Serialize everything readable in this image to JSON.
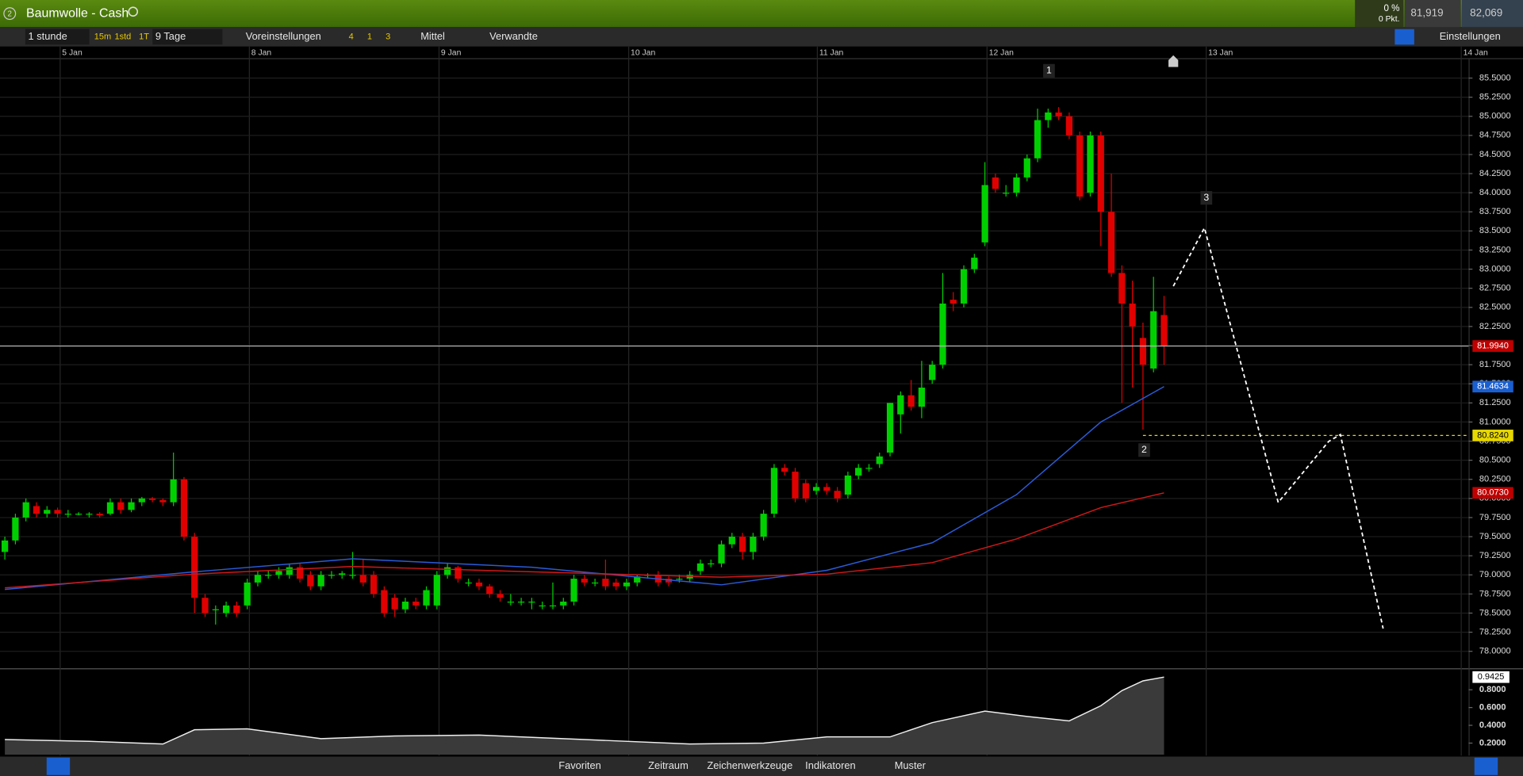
{
  "header": {
    "title": "Baumwolle - Cash",
    "change_pct": "0 %",
    "change_pts": "0 Pkt.",
    "sell": "81,919",
    "buy": "82,069",
    "badge": "2"
  },
  "toolbar": {
    "interval": "1 stunde",
    "quick": [
      "15m",
      "1std",
      "1T"
    ],
    "range": "9 Tage",
    "presets": "Voreinstellungen",
    "counts": [
      "4",
      "1",
      "3"
    ],
    "style": "Mittel",
    "related": "Verwandte",
    "settings": "Einstellungen"
  },
  "footer": {
    "tabs": [
      "Favoriten",
      "Zeitraum",
      "Zeichenwerkzeuge",
      "Indikatoren",
      "Muster"
    ]
  },
  "chart_data": {
    "type": "candlestick",
    "xlim": [
      0,
      138.9
    ],
    "xticks": [
      {
        "value": 5.25,
        "label": "5 Jan"
      },
      {
        "value": 23.2,
        "label": "8 Jan"
      },
      {
        "value": 41.2,
        "label": "9 Jan"
      },
      {
        "value": 59.2,
        "label": "10 Jan"
      },
      {
        "value": 77.1,
        "label": "11 Jan"
      },
      {
        "value": 93.2,
        "label": "12 Jan"
      },
      {
        "value": 114,
        "label": "13 Jan"
      },
      {
        "value": 138.2,
        "label": "14 Jan"
      }
    ],
    "ylim": [
      77.79,
      85.76
    ],
    "yticks": [
      {
        "value": 78,
        "label": "78.0000"
      },
      {
        "value": 78.25,
        "label": "78.2500"
      },
      {
        "value": 78.5,
        "label": "78.5000"
      },
      {
        "value": 78.75,
        "label": "78.7500"
      },
      {
        "value": 79,
        "label": "79.0000"
      },
      {
        "value": 79.25,
        "label": "79.2500"
      },
      {
        "value": 79.5,
        "label": "79.5000"
      },
      {
        "value": 79.75,
        "label": "79.7500"
      },
      {
        "value": 80,
        "label": "80.0000"
      },
      {
        "value": 80.25,
        "label": "80.2500"
      },
      {
        "value": 80.5,
        "label": "80.5000"
      },
      {
        "value": 80.75,
        "label": "80.7500"
      },
      {
        "value": 81,
        "label": "81.0000"
      },
      {
        "value": 81.25,
        "label": "81.2500"
      },
      {
        "value": 81.5,
        "label": "81.5000"
      },
      {
        "value": 81.75,
        "label": "81.7500"
      },
      {
        "value": 82,
        "label": "82.0000"
      },
      {
        "value": 82.25,
        "label": "82.2500"
      },
      {
        "value": 82.5,
        "label": "82.5000"
      },
      {
        "value": 82.75,
        "label": "82.7500"
      },
      {
        "value": 83,
        "label": "83.0000"
      },
      {
        "value": 83.25,
        "label": "83.2500"
      },
      {
        "value": 83.5,
        "label": "83.5000"
      },
      {
        "value": 83.75,
        "label": "83.7500"
      },
      {
        "value": 84,
        "label": "84.0000"
      },
      {
        "value": 84.25,
        "label": "84.2500"
      },
      {
        "value": 84.5,
        "label": "84.5000"
      },
      {
        "value": 84.75,
        "label": "84.7500"
      },
      {
        "value": 85,
        "label": "85.0000"
      },
      {
        "value": 85.25,
        "label": "85.2500"
      },
      {
        "value": 85.5,
        "label": "85.5000"
      }
    ],
    "up_color": "#00d000",
    "down_color": "#e00000",
    "ohlc": [
      [
        79.3,
        79.5,
        79.2,
        79.45
      ],
      [
        79.45,
        79.8,
        79.4,
        79.75
      ],
      [
        79.75,
        80.0,
        79.7,
        79.95
      ],
      [
        79.9,
        79.95,
        79.75,
        79.8
      ],
      [
        79.8,
        79.9,
        79.75,
        79.85
      ],
      [
        79.85,
        79.88,
        79.75,
        79.8
      ],
      [
        79.8,
        79.85,
        79.75,
        79.8
      ],
      [
        79.8,
        79.82,
        79.78,
        79.8
      ],
      [
        79.8,
        79.82,
        79.75,
        79.8
      ],
      [
        79.8,
        79.82,
        79.75,
        79.78
      ],
      [
        79.8,
        80.0,
        79.78,
        79.95
      ],
      [
        79.95,
        80.0,
        79.8,
        79.85
      ],
      [
        79.85,
        80.0,
        79.82,
        79.95
      ],
      [
        79.95,
        80.02,
        79.9,
        80.0
      ],
      [
        80.0,
        80.02,
        79.95,
        79.98
      ],
      [
        79.98,
        80.0,
        79.9,
        79.95
      ],
      [
        79.95,
        80.6,
        79.9,
        80.25
      ],
      [
        80.25,
        80.28,
        79.45,
        79.5
      ],
      [
        79.5,
        79.55,
        78.5,
        78.7
      ],
      [
        78.7,
        78.75,
        78.45,
        78.5
      ],
      [
        78.55,
        78.6,
        78.35,
        78.55
      ],
      [
        78.5,
        78.65,
        78.45,
        78.6
      ],
      [
        78.6,
        78.65,
        78.45,
        78.5
      ],
      [
        78.6,
        78.95,
        78.55,
        78.9
      ],
      [
        78.9,
        79.05,
        78.85,
        79.0
      ],
      [
        79.0,
        79.05,
        78.95,
        79.0
      ],
      [
        79.0,
        79.1,
        78.95,
        79.05
      ],
      [
        79.0,
        79.15,
        78.95,
        79.1
      ],
      [
        79.1,
        79.15,
        78.9,
        78.95
      ],
      [
        79.0,
        79.05,
        78.8,
        78.85
      ],
      [
        78.85,
        79.05,
        78.8,
        79.0
      ],
      [
        79.0,
        79.05,
        78.95,
        79.0
      ],
      [
        79.0,
        79.05,
        78.95,
        79.02
      ],
      [
        79.0,
        79.3,
        78.95,
        79.0
      ],
      [
        79.0,
        79.2,
        78.85,
        78.9
      ],
      [
        79.0,
        79.05,
        78.7,
        78.75
      ],
      [
        78.8,
        78.85,
        78.45,
        78.5
      ],
      [
        78.7,
        78.75,
        78.45,
        78.55
      ],
      [
        78.55,
        78.7,
        78.5,
        78.65
      ],
      [
        78.65,
        78.7,
        78.55,
        78.6
      ],
      [
        78.6,
        78.85,
        78.55,
        78.8
      ],
      [
        78.6,
        79.05,
        78.55,
        79.0
      ],
      [
        79.0,
        79.15,
        78.95,
        79.1
      ],
      [
        79.1,
        79.12,
        78.9,
        78.95
      ],
      [
        78.9,
        78.95,
        78.85,
        78.9
      ],
      [
        78.9,
        78.95,
        78.8,
        78.85
      ],
      [
        78.85,
        78.88,
        78.7,
        78.75
      ],
      [
        78.75,
        78.8,
        78.65,
        78.7
      ],
      [
        78.65,
        78.75,
        78.6,
        78.65
      ],
      [
        78.65,
        78.7,
        78.6,
        78.65
      ],
      [
        78.65,
        78.7,
        78.55,
        78.65
      ],
      [
        78.6,
        78.65,
        78.55,
        78.6
      ],
      [
        78.6,
        78.9,
        78.55,
        78.6
      ],
      [
        78.6,
        78.7,
        78.55,
        78.65
      ],
      [
        78.65,
        79.0,
        78.6,
        78.95
      ],
      [
        78.95,
        79.0,
        78.85,
        78.9
      ],
      [
        78.9,
        78.95,
        78.85,
        78.9
      ],
      [
        78.95,
        79.2,
        78.8,
        78.85
      ],
      [
        78.9,
        78.95,
        78.8,
        78.85
      ],
      [
        78.85,
        78.95,
        78.8,
        78.9
      ],
      [
        78.9,
        79.0,
        78.85,
        78.98
      ],
      [
        79.0,
        79.02,
        78.95,
        79.0
      ],
      [
        79.0,
        79.05,
        78.85,
        78.9
      ],
      [
        78.95,
        78.98,
        78.85,
        78.9
      ],
      [
        78.95,
        79.0,
        78.9,
        78.95
      ],
      [
        78.95,
        79.05,
        78.9,
        79.0
      ],
      [
        79.05,
        79.2,
        79.0,
        79.15
      ],
      [
        79.15,
        79.2,
        79.1,
        79.15
      ],
      [
        79.15,
        79.45,
        79.1,
        79.4
      ],
      [
        79.4,
        79.55,
        79.35,
        79.5
      ],
      [
        79.5,
        79.55,
        79.2,
        79.3
      ],
      [
        79.3,
        79.55,
        79.2,
        79.5
      ],
      [
        79.5,
        79.85,
        79.45,
        79.8
      ],
      [
        79.8,
        80.45,
        79.75,
        80.4
      ],
      [
        80.4,
        80.45,
        80.3,
        80.35
      ],
      [
        80.35,
        80.4,
        79.95,
        80.0
      ],
      [
        80.2,
        80.25,
        79.95,
        80.0
      ],
      [
        80.1,
        80.2,
        80.05,
        80.15
      ],
      [
        80.15,
        80.2,
        80.05,
        80.1
      ],
      [
        80.1,
        80.15,
        79.95,
        80.0
      ],
      [
        80.05,
        80.35,
        80.0,
        80.3
      ],
      [
        80.3,
        80.45,
        80.25,
        80.4
      ],
      [
        80.4,
        80.45,
        80.35,
        80.4
      ],
      [
        80.45,
        80.6,
        80.4,
        80.55
      ],
      [
        80.6,
        81.25,
        80.55,
        81.25
      ],
      [
        81.1,
        81.4,
        80.85,
        81.35
      ],
      [
        81.35,
        81.55,
        81.15,
        81.2
      ],
      [
        81.2,
        81.8,
        81.05,
        81.45
      ],
      [
        81.55,
        81.8,
        81.5,
        81.75
      ],
      [
        81.75,
        82.95,
        81.7,
        82.55
      ],
      [
        82.6,
        82.7,
        82.45,
        82.55
      ],
      [
        82.55,
        83.05,
        82.5,
        83.0
      ],
      [
        83.0,
        83.2,
        82.95,
        83.15
      ],
      [
        83.35,
        84.4,
        83.3,
        84.1
      ],
      [
        84.2,
        84.25,
        84.0,
        84.05
      ],
      [
        84.0,
        84.1,
        83.95,
        84.0
      ],
      [
        84.0,
        84.25,
        83.95,
        84.2
      ],
      [
        84.2,
        84.5,
        84.15,
        84.45
      ],
      [
        84.45,
        85.1,
        84.4,
        84.95
      ],
      [
        84.95,
        85.1,
        84.85,
        85.05
      ],
      [
        85.05,
        85.12,
        84.95,
        85.0
      ],
      [
        85.0,
        85.05,
        84.7,
        84.75
      ],
      [
        84.75,
        84.8,
        83.9,
        83.95
      ],
      [
        84.0,
        84.8,
        83.95,
        84.75
      ],
      [
        84.75,
        84.8,
        83.3,
        83.75
      ],
      [
        83.75,
        84.25,
        82.9,
        82.95
      ],
      [
        82.95,
        83.05,
        81.25,
        82.55
      ],
      [
        82.55,
        82.85,
        81.45,
        82.25
      ],
      [
        82.1,
        82.3,
        80.9,
        81.75
      ],
      [
        81.7,
        82.9,
        81.65,
        82.45
      ],
      [
        82.4,
        82.65,
        81.75,
        81.994
      ]
    ],
    "series": [
      {
        "color": "#2a5bd7",
        "x": [
          0,
          18,
          33,
          50,
          68,
          78,
          88,
          96,
          104,
          110
        ],
        "values": [
          78.81,
          79.04,
          79.21,
          79.1,
          78.87,
          79.06,
          79.42,
          80.05,
          81.0,
          81.4634
        ]
      },
      {
        "color": "#d01818",
        "x": [
          0,
          18,
          33,
          50,
          68,
          78,
          88,
          96,
          104,
          110
        ],
        "values": [
          78.83,
          79.01,
          79.11,
          79.04,
          78.97,
          79.01,
          79.16,
          79.47,
          79.88,
          80.073
        ]
      }
    ],
    "price_labels": [
      {
        "value": 81.994,
        "label": "81.9940",
        "color": "#c00000"
      },
      {
        "value": 81.4634,
        "label": "81.4634",
        "color": "#1a5fd0"
      },
      {
        "value": 80.824,
        "label": "80.8240",
        "color": "#e8d800"
      },
      {
        "value": 80.073,
        "label": "80.0730",
        "color": "#c00000"
      }
    ],
    "annotations": [
      "1",
      "2",
      "3"
    ],
    "indicator": {
      "ylim": [
        0.07,
        1.03
      ],
      "yticks": [
        {
          "value": 0.2,
          "label": "0.2000"
        },
        {
          "value": 0.4,
          "label": "0.4000"
        },
        {
          "value": 0.6,
          "label": "0.6000"
        },
        {
          "value": 0.8,
          "label": "0.8000"
        }
      ],
      "x": [
        0,
        8,
        15,
        18,
        23,
        30,
        37,
        45,
        55,
        65,
        72,
        78,
        84,
        88,
        93,
        97,
        101,
        104,
        106,
        108,
        110
      ],
      "values": [
        0.24,
        0.22,
        0.19,
        0.35,
        0.36,
        0.25,
        0.28,
        0.29,
        0.24,
        0.19,
        0.2,
        0.27,
        0.27,
        0.43,
        0.56,
        0.5,
        0.45,
        0.62,
        0.79,
        0.9,
        0.9425
      ],
      "last": {
        "value": 0.9425,
        "label": "0.9425"
      }
    }
  }
}
